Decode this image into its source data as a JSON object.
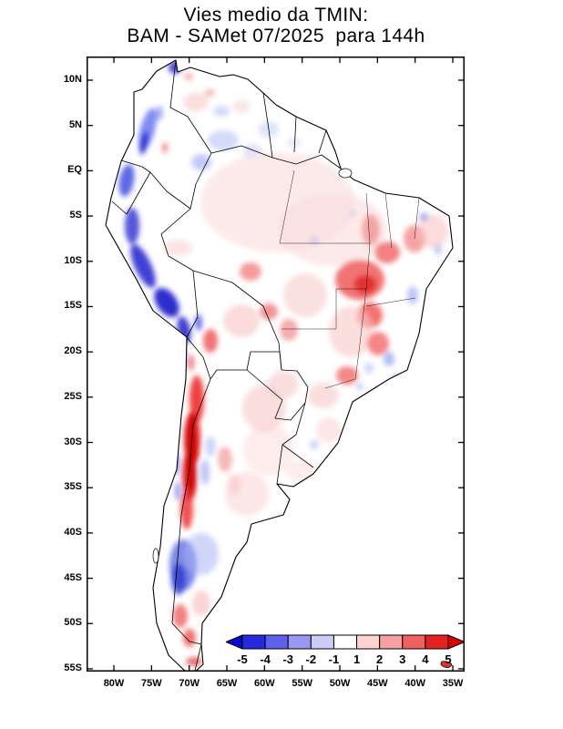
{
  "title": {
    "line1": "Vies medio da TMIN:",
    "line2": "BAM - SAMet 07/2025  para 144h"
  },
  "map": {
    "lat_ticks": [
      {
        "label": "10N",
        "deg": 10
      },
      {
        "label": "5N",
        "deg": 5
      },
      {
        "label": "EQ",
        "deg": 0
      },
      {
        "label": "5S",
        "deg": -5
      },
      {
        "label": "10S",
        "deg": -10
      },
      {
        "label": "15S",
        "deg": -15
      },
      {
        "label": "20S",
        "deg": -20
      },
      {
        "label": "25S",
        "deg": -25
      },
      {
        "label": "30S",
        "deg": -30
      },
      {
        "label": "35S",
        "deg": -35
      },
      {
        "label": "40S",
        "deg": -40
      },
      {
        "label": "45S",
        "deg": -45
      },
      {
        "label": "50S",
        "deg": -50
      },
      {
        "label": "55S",
        "deg": -55
      }
    ],
    "lon_ticks": [
      {
        "label": "80W",
        "deg": -80
      },
      {
        "label": "75W",
        "deg": -75
      },
      {
        "label": "70W",
        "deg": -70
      },
      {
        "label": "65W",
        "deg": -65
      },
      {
        "label": "60W",
        "deg": -60
      },
      {
        "label": "55W",
        "deg": -55
      },
      {
        "label": "50W",
        "deg": -50
      },
      {
        "label": "45W",
        "deg": -45
      },
      {
        "label": "40W",
        "deg": -40
      },
      {
        "label": "35W",
        "deg": -35
      }
    ]
  },
  "legend": {
    "tick_labels": [
      "-5",
      "-4",
      "-3",
      "-2",
      "-1",
      "1",
      "2",
      "3",
      "4",
      "5"
    ],
    "segment_colors": [
      "#2828e0",
      "#6060ee",
      "#9898f4",
      "#ccccf8",
      "#ffffff",
      "#fcd2d2",
      "#f8a0a0",
      "#f06060",
      "#e42020"
    ],
    "arrow_left_color": "#0a0acd",
    "arrow_right_color": "#d80000"
  },
  "chart_data": {
    "type": "heatmap",
    "title": "Vies medio da TMIN: BAM - SAMet 07/2025 para 144h",
    "model": "BAM",
    "reference": "SAMet",
    "period": "07/2025",
    "forecast_hour": "144h",
    "region": "South America",
    "lat_axis": [
      "10N",
      "5N",
      "EQ",
      "5S",
      "10S",
      "15S",
      "20S",
      "25S",
      "30S",
      "35S",
      "40S",
      "45S",
      "50S",
      "55S"
    ],
    "lon_axis": [
      "80W",
      "75W",
      "70W",
      "65W",
      "60W",
      "55W",
      "50W",
      "45W",
      "40W",
      "35W"
    ],
    "colorbar_ticks": [
      -5,
      -4,
      -3,
      -2,
      -1,
      1,
      2,
      3,
      4,
      5
    ],
    "colorbar_orientation": "horizontal, arrow ends both sides, bottom right of plot",
    "notable_features": [
      {
        "area": "Andes and Pacific coast of Colombia, Ecuador, Peru, N Chile",
        "bias": "strong negative (-3 to -5)"
      },
      {
        "area": "Central Chile / Argentina Andes 25S-36S",
        "bias": "strong positive (+3 to +5)"
      },
      {
        "area": "Central and Northeast Brazil interior",
        "bias": "positive (+1 to +3)"
      },
      {
        "area": "Patagonia 42S-47S",
        "bias": "negative (-2 to -4)"
      },
      {
        "area": "Southern Patagonia 48S-52S and Tierra del Fuego",
        "bias": "positive (+1 to +3)"
      },
      {
        "area": "Amazon basin and Pampas",
        "bias": "weak positive (0 to +1)"
      },
      {
        "area": "NW Amazon / S Venezuela / Guyana",
        "bias": "weak negative (0 to -2)"
      }
    ]
  }
}
